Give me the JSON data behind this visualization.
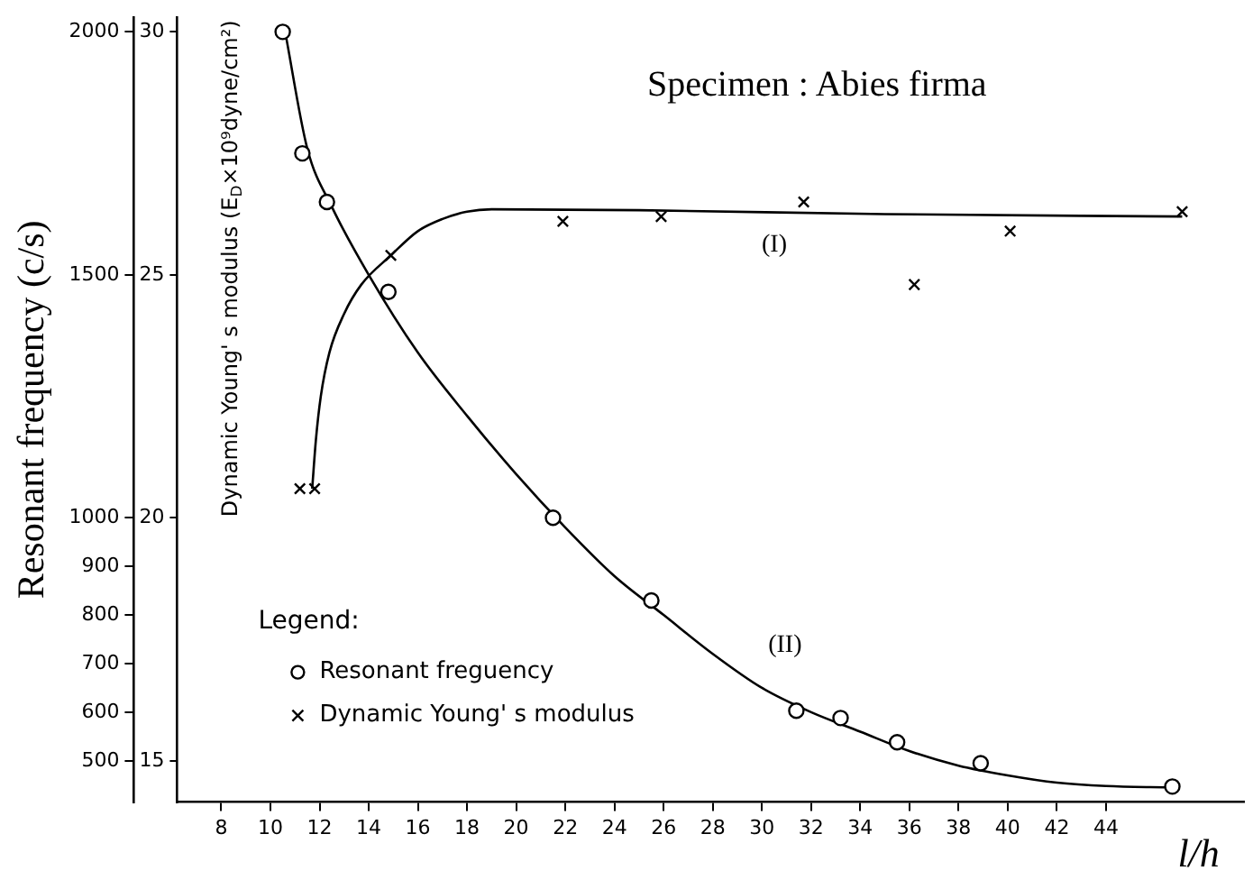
{
  "chart_data": {
    "type": "scatter",
    "title": "Specimen : Abies firma",
    "xlabel": "l/h",
    "ylabel": "Resonant frequency (c/s)",
    "y2label": "Dynamic Young' s modulus (E$_{D}$×10⁹dyne/cm²)",
    "legend_title": "Legend:",
    "legend": "bottom left",
    "xlim": [
      6.2,
      49.6
    ],
    "xticks": [
      8,
      10,
      12,
      14,
      16,
      18,
      20,
      22,
      24,
      26,
      28,
      30,
      32,
      34,
      36,
      38,
      40,
      42,
      44
    ],
    "ylim": [
      415,
      2030
    ],
    "yticks": [
      500,
      600,
      700,
      800,
      900,
      1000,
      1500,
      2000
    ],
    "y2lim": [
      14.15,
      30.3
    ],
    "y2ticks": [
      15,
      20,
      25,
      30
    ],
    "grid": false,
    "series": [
      {
        "name": "Resonant freguency",
        "marker": "circle",
        "color": "#000000",
        "x": [
          10.5,
          11.3,
          12.3,
          14.8,
          21.5,
          25.5,
          31.4,
          33.2,
          35.5,
          38.9,
          46.7
        ],
        "values": [
          2000,
          1750,
          1650,
          1465,
          1000,
          830,
          603,
          588,
          538,
          495,
          447
        ]
      },
      {
        "name": "Dynamic Young' s modulus",
        "marker": "cross",
        "axis": "y2",
        "color": "#000000",
        "x": [
          11.2,
          11.8,
          14.9,
          21.9,
          25.9,
          31.7,
          36.2,
          40.1,
          47.1
        ],
        "values": [
          20.6,
          20.6,
          25.4,
          26.1,
          26.2,
          26.5,
          24.8,
          25.9,
          26.3
        ]
      },
      {
        "type": "line",
        "marker": "none",
        "color": "#000000",
        "x": [
          10.6,
          11.5,
          12.5,
          14,
          16,
          18,
          20,
          22,
          24,
          26,
          28,
          30,
          32,
          34,
          36,
          38,
          40,
          42,
          44,
          46.7
        ],
        "values": [
          2000,
          1760,
          1640,
          1500,
          1340,
          1210,
          1090,
          980,
          880,
          800,
          720,
          650,
          600,
          560,
          520,
          490,
          470,
          455,
          448,
          445
        ]
      },
      {
        "type": "line",
        "marker": "none",
        "axis": "y2",
        "color": "#000000",
        "x": [
          11.7,
          11.85,
          12.05,
          12.4,
          13,
          13.7,
          14.9,
          16,
          17,
          18,
          19,
          25,
          35,
          47.1
        ],
        "values": [
          20.6,
          21.6,
          22.5,
          23.4,
          24.2,
          24.8,
          25.4,
          25.9,
          26.15,
          26.3,
          26.35,
          26.33,
          26.25,
          26.2
        ]
      }
    ],
    "annotations": [
      "(I)",
      "(II)"
    ]
  }
}
